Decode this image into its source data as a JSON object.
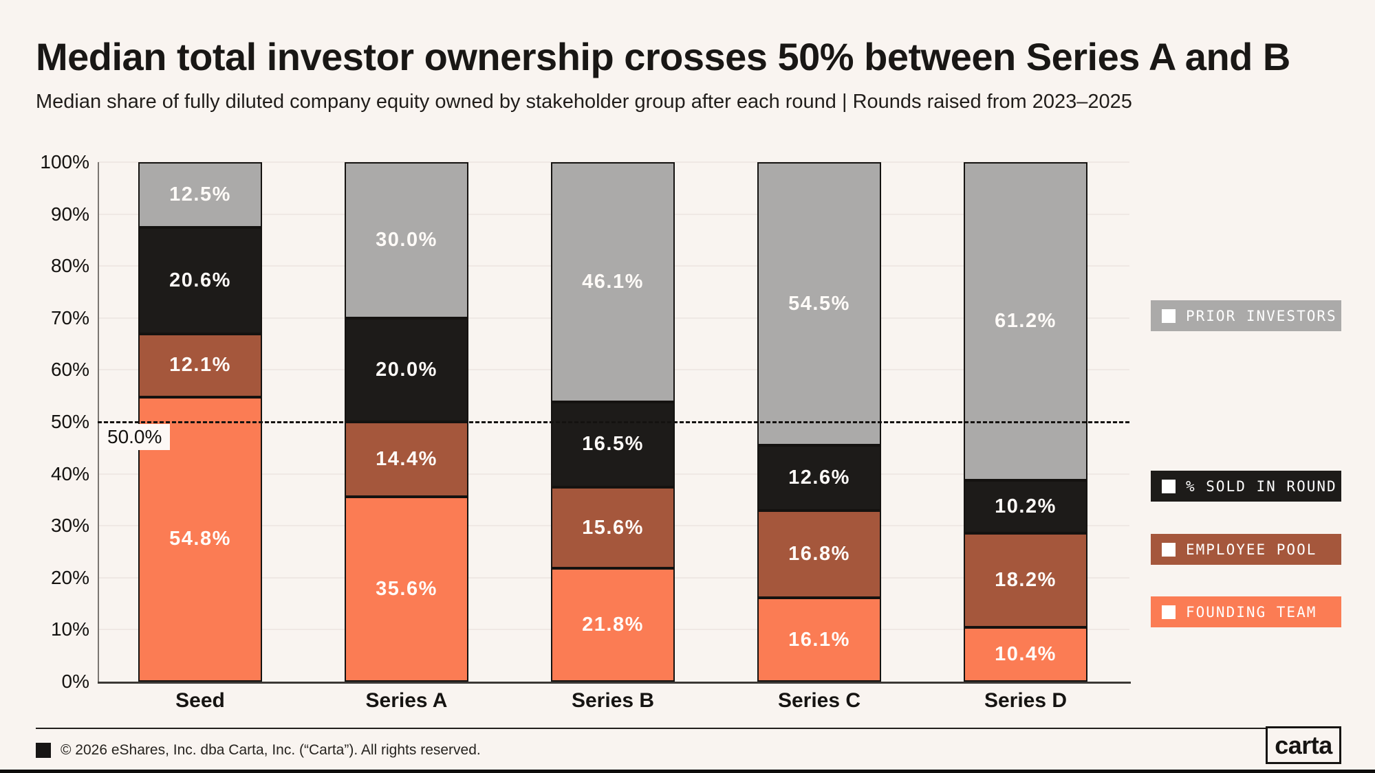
{
  "header": {
    "title": "Median total investor ownership crosses 50% between Series A and B",
    "subtitle": "Median share of fully diluted company equity owned by stakeholder group after each round | Rounds raised from 2023–2025"
  },
  "chart_data": {
    "type": "bar",
    "stacked": true,
    "categories": [
      "Seed",
      "Series A",
      "Series B",
      "Series C",
      "Series D"
    ],
    "series": [
      {
        "name": "FOUNDING TEAM",
        "color": "#FB7C54",
        "values": [
          54.8,
          35.6,
          21.8,
          16.1,
          10.4
        ]
      },
      {
        "name": "EMPLOYEE POOL",
        "color": "#A5573C",
        "values": [
          12.1,
          14.4,
          15.6,
          16.8,
          18.2
        ]
      },
      {
        "name": "% SOLD IN ROUND",
        "color": "#1D1B19",
        "values": [
          20.6,
          20.0,
          16.5,
          12.6,
          10.2
        ]
      },
      {
        "name": "PRIOR INVESTORS",
        "color": "#ABAAA9",
        "values": [
          12.5,
          30.0,
          46.1,
          54.5,
          61.2
        ]
      }
    ],
    "value_suffix": "%",
    "ylim": [
      0,
      100
    ],
    "ytick_labels": [
      "0%",
      "10%",
      "20%",
      "30%",
      "40%",
      "50%",
      "60%",
      "70%",
      "80%",
      "90%",
      "100%"
    ],
    "grid": true,
    "reference_line": {
      "value": 50,
      "label": "50.0%"
    },
    "legend": {
      "position": "right",
      "items": [
        "PRIOR INVESTORS",
        "% SOLD IN ROUND",
        "EMPLOYEE POOL",
        "FOUNDING TEAM"
      ]
    }
  },
  "footer": {
    "copyright": "© 2026 eShares, Inc. dba Carta, Inc. (“Carta”). All rights reserved.",
    "logo": "carta"
  }
}
